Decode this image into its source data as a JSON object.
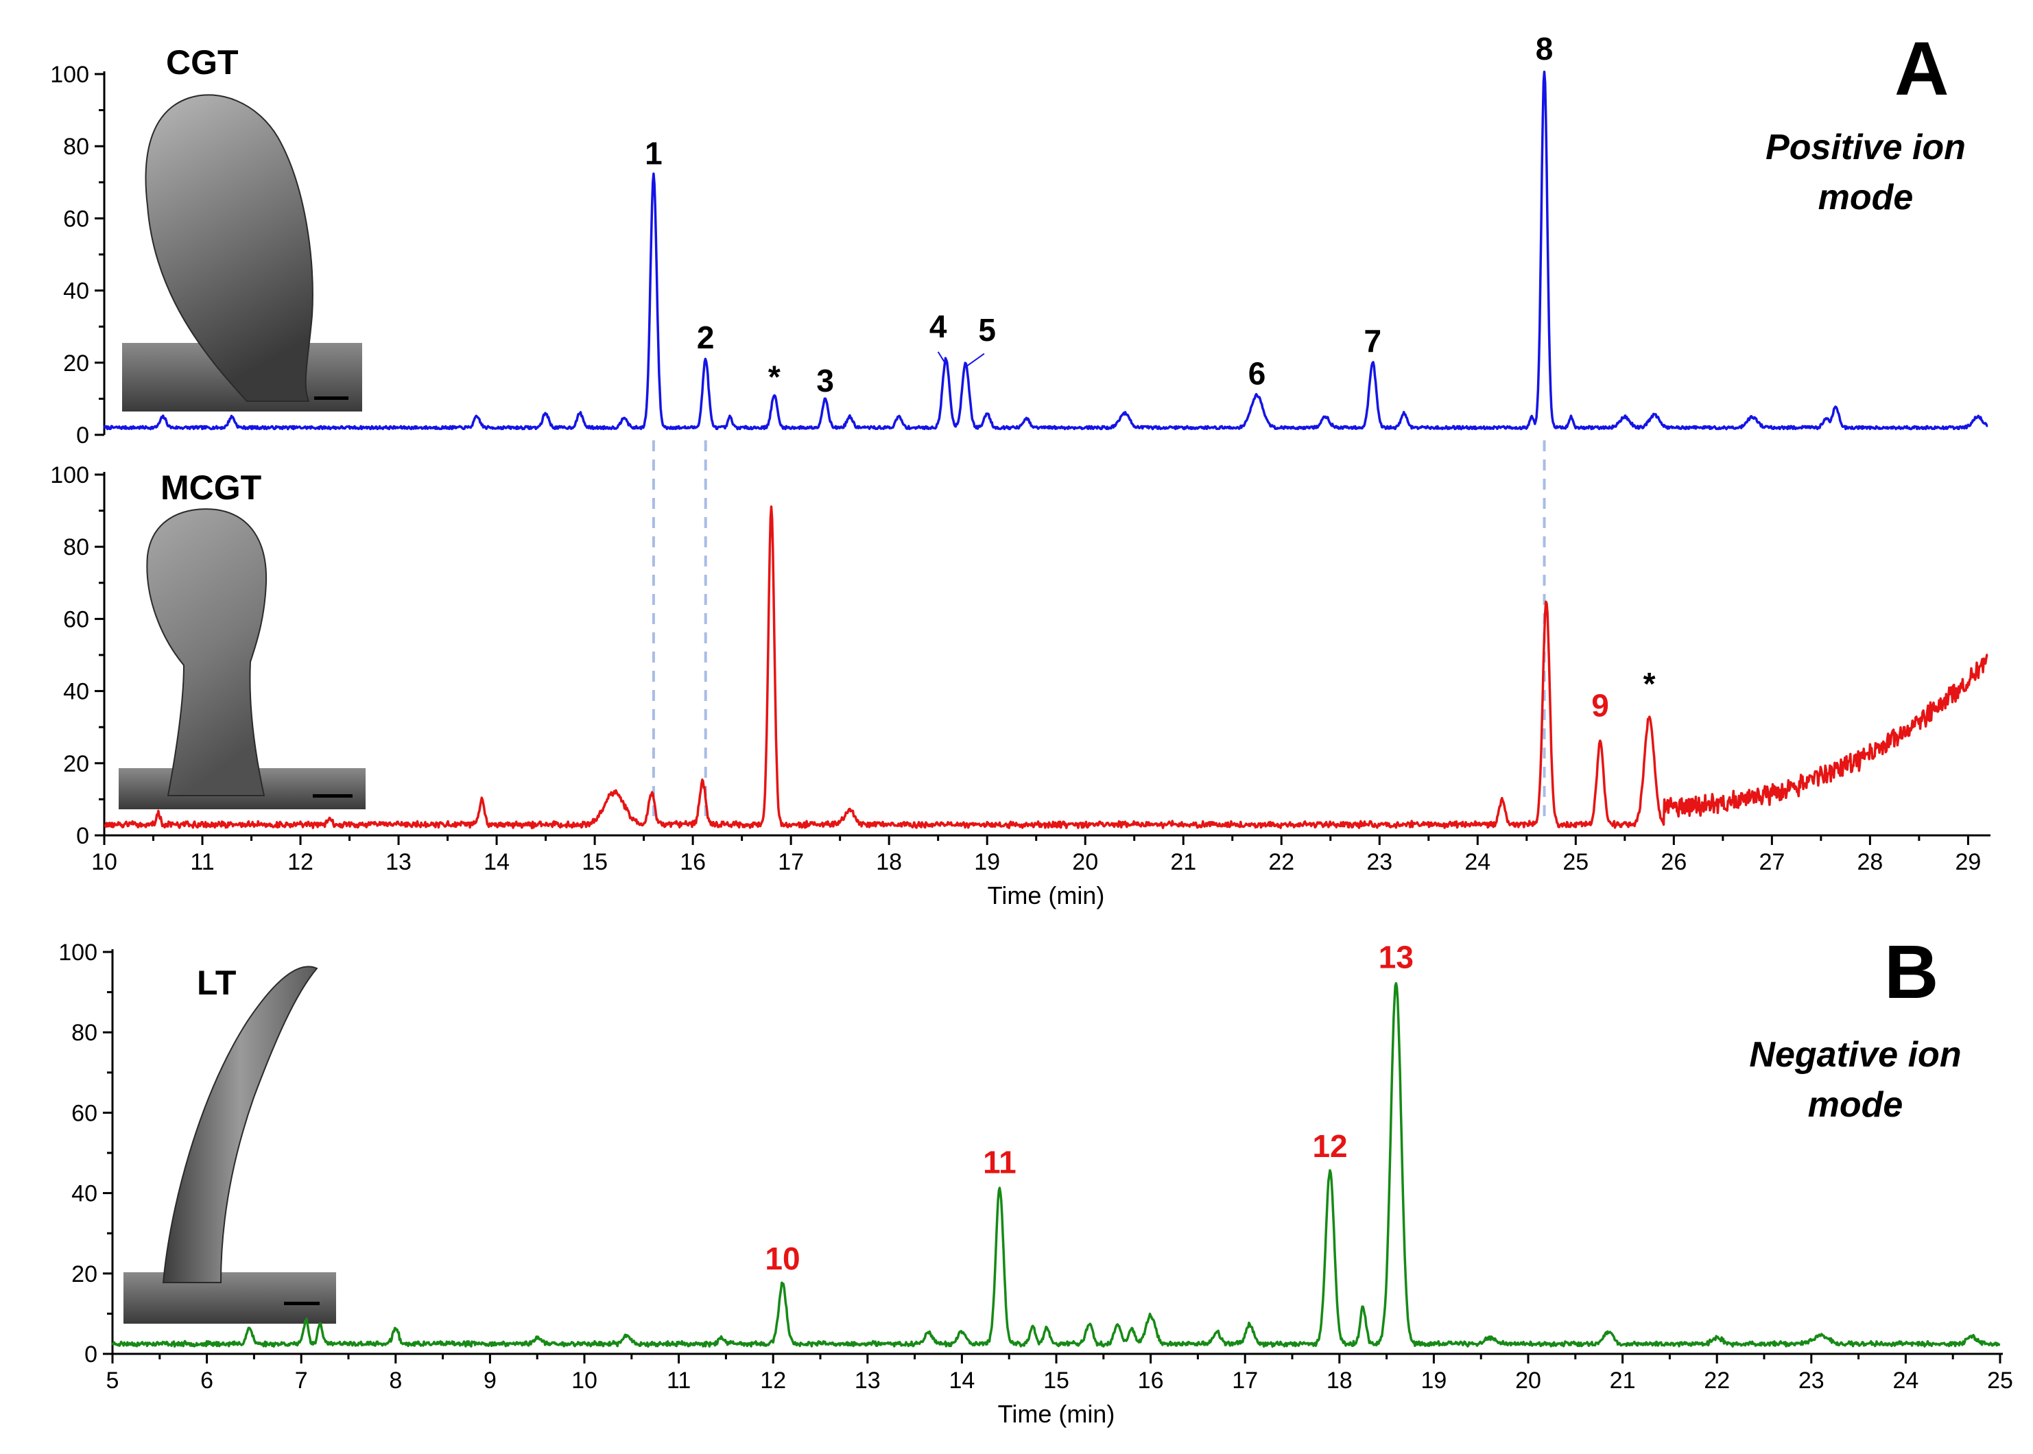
{
  "chart_data": [
    {
      "id": "cgt",
      "type": "line",
      "panel_letter": "A",
      "inset_label": "CGT",
      "mode_text": [
        "Positive ion",
        "mode"
      ],
      "color": "#1414e6",
      "xlim": [
        10,
        29.2
      ],
      "ylim": [
        0,
        100
      ],
      "yticks": [
        0,
        20,
        40,
        60,
        80,
        100
      ],
      "xlabel": "",
      "baseline": 2,
      "peaks": [
        {
          "x": 10.6,
          "y": 3,
          "w": 0.03
        },
        {
          "x": 11.3,
          "y": 3,
          "w": 0.03
        },
        {
          "x": 13.8,
          "y": 3,
          "w": 0.03
        },
        {
          "x": 14.5,
          "y": 4,
          "w": 0.03
        },
        {
          "x": 14.85,
          "y": 4,
          "w": 0.03
        },
        {
          "x": 15.3,
          "y": 3,
          "w": 0.03
        },
        {
          "x": 15.6,
          "y": 70,
          "w": 0.032
        },
        {
          "x": 16.13,
          "y": 19,
          "w": 0.03
        },
        {
          "x": 16.38,
          "y": 3,
          "w": 0.02
        },
        {
          "x": 16.83,
          "y": 9,
          "w": 0.03
        },
        {
          "x": 17.35,
          "y": 8,
          "w": 0.03
        },
        {
          "x": 17.6,
          "y": 3,
          "w": 0.03
        },
        {
          "x": 18.1,
          "y": 3,
          "w": 0.03
        },
        {
          "x": 18.58,
          "y": 19,
          "w": 0.035
        },
        {
          "x": 18.78,
          "y": 18,
          "w": 0.035
        },
        {
          "x": 19.0,
          "y": 4,
          "w": 0.03
        },
        {
          "x": 19.4,
          "y": 2.5,
          "w": 0.03
        },
        {
          "x": 20.4,
          "y": 4,
          "w": 0.05
        },
        {
          "x": 21.75,
          "y": 9,
          "w": 0.06
        },
        {
          "x": 22.45,
          "y": 3,
          "w": 0.04
        },
        {
          "x": 22.93,
          "y": 18,
          "w": 0.035
        },
        {
          "x": 23.25,
          "y": 4,
          "w": 0.03
        },
        {
          "x": 24.55,
          "y": 3,
          "w": 0.02
        },
        {
          "x": 24.68,
          "y": 99,
          "w": 0.03
        },
        {
          "x": 24.95,
          "y": 3,
          "w": 0.02
        },
        {
          "x": 25.5,
          "y": 3,
          "w": 0.05
        },
        {
          "x": 25.8,
          "y": 3.5,
          "w": 0.05
        },
        {
          "x": 26.8,
          "y": 3,
          "w": 0.05
        },
        {
          "x": 27.55,
          "y": 2.5,
          "w": 0.03
        },
        {
          "x": 27.65,
          "y": 6,
          "w": 0.03
        },
        {
          "x": 29.1,
          "y": 3,
          "w": 0.05
        }
      ],
      "annotations": [
        {
          "text": "1",
          "x": 15.6,
          "y": 75,
          "color": "#000000"
        },
        {
          "text": "2",
          "x": 16.13,
          "y": 24,
          "color": "#000000"
        },
        {
          "text": "*",
          "x": 16.83,
          "y": 13,
          "color": "#000000"
        },
        {
          "text": "3",
          "x": 17.35,
          "y": 12,
          "color": "#000000"
        },
        {
          "text": "4",
          "x": 18.5,
          "y": 27,
          "color": "#000000"
        },
        {
          "text": "5",
          "x": 19.0,
          "y": 26,
          "color": "#000000"
        },
        {
          "text": "6",
          "x": 21.75,
          "y": 14,
          "color": "#000000"
        },
        {
          "text": "7",
          "x": 22.93,
          "y": 23,
          "color": "#000000"
        },
        {
          "text": "8",
          "x": 24.68,
          "y": 104,
          "color": "#000000"
        }
      ]
    },
    {
      "id": "mcgt",
      "type": "line",
      "inset_label": "MCGT",
      "color": "#e61414",
      "xlim": [
        10,
        29.2
      ],
      "ylim": [
        0,
        100
      ],
      "yticks": [
        0,
        20,
        40,
        60,
        80,
        100
      ],
      "xticks": [
        10,
        11,
        12,
        13,
        14,
        15,
        16,
        17,
        18,
        19,
        20,
        21,
        22,
        23,
        24,
        25,
        26,
        27,
        28,
        29
      ],
      "xlabel": "Time (min)",
      "baseline": 3,
      "peaks": [
        {
          "x": 10.55,
          "y": 3,
          "w": 0.02
        },
        {
          "x": 12.3,
          "y": 2,
          "w": 0.02
        },
        {
          "x": 13.85,
          "y": 7,
          "w": 0.025
        },
        {
          "x": 15.2,
          "y": 9,
          "w": 0.1
        },
        {
          "x": 15.58,
          "y": 9,
          "w": 0.03
        },
        {
          "x": 16.1,
          "y": 12,
          "w": 0.03
        },
        {
          "x": 16.8,
          "y": 88,
          "w": 0.03
        },
        {
          "x": 17.6,
          "y": 4,
          "w": 0.05
        },
        {
          "x": 24.25,
          "y": 7,
          "w": 0.03
        },
        {
          "x": 24.7,
          "y": 62,
          "w": 0.035
        },
        {
          "x": 25.25,
          "y": 23,
          "w": 0.035
        },
        {
          "x": 25.75,
          "y": 30,
          "w": 0.05
        }
      ],
      "annotations": [
        {
          "text": "9",
          "x": 25.25,
          "y": 33,
          "color": "#e61414"
        },
        {
          "text": "*",
          "x": 25.75,
          "y": 39,
          "color": "#000000"
        }
      ]
    },
    {
      "id": "lt",
      "type": "line",
      "panel_letter": "B",
      "inset_label": "LT",
      "mode_text": [
        "Negative ion",
        "mode"
      ],
      "color": "#168a16",
      "xlim": [
        5,
        25
      ],
      "ylim": [
        0,
        100
      ],
      "yticks": [
        0,
        20,
        40,
        60,
        80,
        100
      ],
      "xticks": [
        5,
        6,
        7,
        8,
        9,
        10,
        11,
        12,
        13,
        14,
        15,
        16,
        17,
        18,
        19,
        20,
        21,
        22,
        23,
        24,
        25
      ],
      "xlabel": "Time (min)",
      "baseline": 2.5,
      "peaks": [
        {
          "x": 6.45,
          "y": 4,
          "w": 0.03
        },
        {
          "x": 7.05,
          "y": 6,
          "w": 0.025
        },
        {
          "x": 7.2,
          "y": 5,
          "w": 0.025
        },
        {
          "x": 8.0,
          "y": 4,
          "w": 0.03
        },
        {
          "x": 9.5,
          "y": 1.5,
          "w": 0.04
        },
        {
          "x": 10.45,
          "y": 2,
          "w": 0.04
        },
        {
          "x": 11.45,
          "y": 1.5,
          "w": 0.03
        },
        {
          "x": 12.1,
          "y": 15,
          "w": 0.04
        },
        {
          "x": 13.65,
          "y": 3,
          "w": 0.04
        },
        {
          "x": 14.0,
          "y": 3,
          "w": 0.04
        },
        {
          "x": 14.4,
          "y": 39,
          "w": 0.04
        },
        {
          "x": 14.75,
          "y": 4,
          "w": 0.03
        },
        {
          "x": 14.9,
          "y": 4,
          "w": 0.03
        },
        {
          "x": 15.35,
          "y": 5,
          "w": 0.035
        },
        {
          "x": 15.65,
          "y": 5,
          "w": 0.035
        },
        {
          "x": 15.8,
          "y": 4,
          "w": 0.03
        },
        {
          "x": 16.0,
          "y": 7,
          "w": 0.05
        },
        {
          "x": 16.7,
          "y": 3,
          "w": 0.04
        },
        {
          "x": 17.05,
          "y": 5,
          "w": 0.04
        },
        {
          "x": 17.9,
          "y": 43,
          "w": 0.045
        },
        {
          "x": 18.25,
          "y": 9,
          "w": 0.03
        },
        {
          "x": 18.6,
          "y": 90,
          "w": 0.055
        },
        {
          "x": 19.6,
          "y": 1.5,
          "w": 0.05
        },
        {
          "x": 20.85,
          "y": 3,
          "w": 0.05
        },
        {
          "x": 22.0,
          "y": 1.5,
          "w": 0.05
        },
        {
          "x": 23.1,
          "y": 2,
          "w": 0.08
        },
        {
          "x": 24.7,
          "y": 2,
          "w": 0.05
        }
      ],
      "annotations": [
        {
          "text": "10",
          "x": 12.1,
          "y": 21,
          "color": "#e61414"
        },
        {
          "text": "11",
          "x": 14.4,
          "y": 45,
          "color": "#e61414"
        },
        {
          "text": "12",
          "x": 17.9,
          "y": 49,
          "color": "#e61414"
        },
        {
          "text": "13",
          "x": 18.6,
          "y": 96,
          "color": "#e61414"
        }
      ]
    }
  ],
  "guide_lines": {
    "color": "#a8bde6",
    "x": [
      15.6,
      16.13,
      24.68
    ]
  }
}
